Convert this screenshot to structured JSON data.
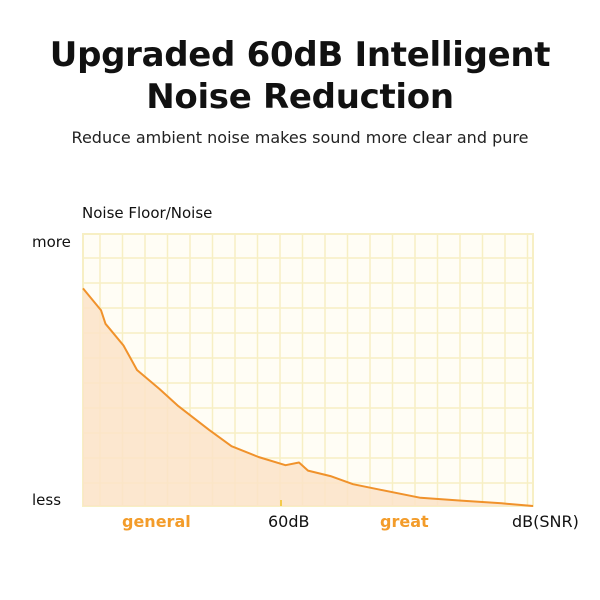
{
  "header": {
    "title_line1": "Upgraded 60dB Intelligent",
    "title_line2": "Noise Reduction",
    "subtitle": "Reduce ambient noise makes sound more clear and pure"
  },
  "chart_data": {
    "type": "area",
    "title": "",
    "ylabel": "Noise Floor/Noise",
    "xlabel": "dB(SNR)",
    "y_tick_labels": {
      "top": "more",
      "bottom": "less"
    },
    "x_tick_labels": {
      "left_region": "general",
      "marker": "60dB",
      "right_region": "great"
    },
    "x_marker_value": 44,
    "xlim": [
      0,
      100
    ],
    "ylim": [
      0,
      100
    ],
    "grid": true,
    "colors": {
      "line": "#f0922b",
      "fill": "#fbe3c8",
      "grid": "#f7efc4",
      "highlight": "#f39c2a"
    },
    "x": [
      0,
      4,
      5,
      6,
      9,
      12,
      17,
      21,
      28,
      33,
      39,
      45,
      48,
      50,
      55,
      60,
      66,
      75,
      84,
      93,
      100
    ],
    "y": [
      80,
      72,
      67,
      65,
      59,
      50,
      43,
      37,
      28,
      22,
      18,
      15,
      16,
      13,
      11,
      8,
      6,
      3,
      2,
      1,
      0
    ]
  }
}
